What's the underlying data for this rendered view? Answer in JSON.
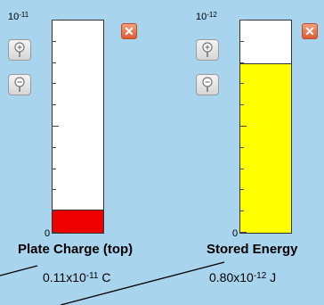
{
  "meters": {
    "charge": {
      "scale_base": "10",
      "scale_exp": "-11",
      "zero_label": "0",
      "label": "Plate Charge (top)",
      "value_mantissa": "0.11x10",
      "value_exp": "-11",
      "value_unit": "C",
      "fill_fraction": 0.11,
      "fill_color": "#ee0000",
      "close_glyph": "✕"
    },
    "energy": {
      "scale_base": "10",
      "scale_exp": "-12",
      "zero_label": "0",
      "label": "Stored Energy",
      "value_mantissa": "0.80x10",
      "value_exp": "-12",
      "value_unit": "J",
      "fill_fraction": 0.8,
      "fill_color": "#ffff00",
      "close_glyph": "✕"
    }
  },
  "icons": {
    "zoom_in": "zoom-in-icon",
    "zoom_out": "zoom-out-icon",
    "close": "close-icon"
  }
}
